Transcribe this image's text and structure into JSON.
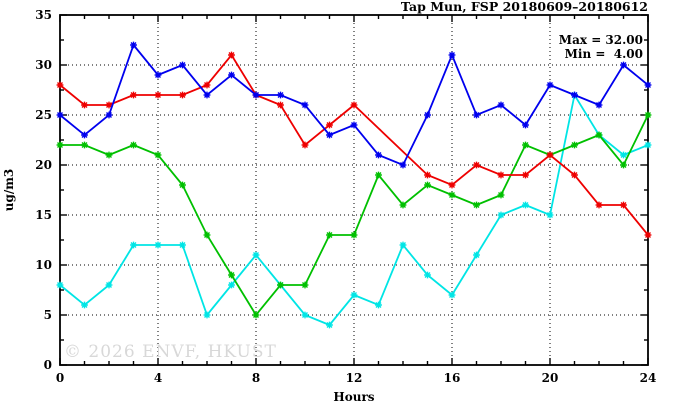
{
  "watermark": "© 2026 ENVF, HKUST",
  "chart_data": {
    "type": "line",
    "title": "Tap Mun, FSP 20180609–20180612",
    "xlabel": "Hours",
    "ylabel": "ug/m3",
    "xlim": [
      0,
      24
    ],
    "ylim": [
      0,
      35
    ],
    "x_tick_labels": [
      0,
      4,
      8,
      12,
      16,
      20,
      24
    ],
    "y_tick_labels": [
      0,
      5,
      10,
      15,
      20,
      25,
      30,
      35
    ],
    "x_minor_step": 1,
    "y_minor_step": 2.5,
    "grid": true,
    "grid_x_lines": [
      4,
      8,
      12,
      16,
      20
    ],
    "grid_y_lines": [
      5,
      10,
      15,
      20,
      25,
      30
    ],
    "annotations": {
      "max": "Max = 32.00",
      "min": "Min =  4.00"
    },
    "x": [
      0,
      1,
      2,
      3,
      4,
      5,
      6,
      7,
      8,
      9,
      10,
      11,
      12,
      13,
      14,
      15,
      16,
      17,
      18,
      19,
      20,
      21,
      22,
      23,
      24
    ],
    "series": [
      {
        "name": "cyan",
        "color": "#00e5e5",
        "values": [
          8,
          6,
          8,
          12,
          12,
          12,
          5,
          8,
          11,
          8,
          5,
          4,
          7,
          6,
          12,
          9,
          7,
          11,
          15,
          16,
          15,
          27,
          23,
          21,
          22
        ]
      },
      {
        "name": "green",
        "color": "#00c000",
        "values": [
          22,
          22,
          21,
          22,
          21,
          18,
          13,
          9,
          5,
          8,
          8,
          13,
          13,
          19,
          16,
          18,
          17,
          16,
          17,
          22,
          21,
          22,
          23,
          20,
          25
        ]
      },
      {
        "name": "red",
        "color": "#ee0000",
        "values": [
          28,
          26,
          26,
          27,
          27,
          27,
          28,
          31,
          27,
          26,
          22,
          24,
          26,
          null,
          null,
          19,
          18,
          20,
          19,
          19,
          21,
          19,
          16,
          16,
          13
        ]
      },
      {
        "name": "blue",
        "color": "#0000ee",
        "values": [
          25,
          23,
          25,
          32,
          29,
          30,
          27,
          29,
          27,
          27,
          26,
          23,
          24,
          21,
          20,
          25,
          31,
          25,
          26,
          24,
          28,
          27,
          26,
          30,
          28
        ]
      }
    ]
  }
}
